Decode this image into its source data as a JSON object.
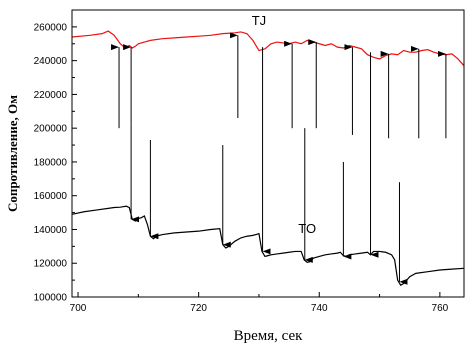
{
  "chart_data": {
    "type": "line",
    "xlabel": "Время, сек",
    "ylabel": "Сопротивление, Ом",
    "xlim": [
      699,
      764
    ],
    "ylim": [
      100000,
      270000
    ],
    "xticks": [
      700,
      720,
      740,
      760
    ],
    "yticks": [
      100000,
      120000,
      140000,
      160000,
      180000,
      200000,
      220000,
      240000,
      260000
    ],
    "grid": false,
    "series": [
      {
        "name": "TJ",
        "color": "#ee1111",
        "x": [
          699,
          702,
          704,
          705,
          706,
          707,
          707.5,
          708,
          708.5,
          709,
          709.5,
          710,
          711,
          712,
          714,
          716,
          718,
          720,
          722,
          724,
          726,
          727,
          728,
          729,
          730,
          731,
          732,
          733,
          734,
          735,
          736,
          737,
          738,
          739,
          740,
          741,
          742,
          743,
          744,
          745,
          746,
          747,
          748,
          749,
          750,
          751,
          752,
          753,
          754,
          755,
          756,
          757,
          758,
          759,
          760,
          761,
          762,
          763,
          764
        ],
        "y": [
          254000,
          255000,
          256000,
          257500,
          255000,
          250000,
          248500,
          248000,
          249000,
          247500,
          248500,
          250000,
          251000,
          252000,
          253000,
          253500,
          254000,
          254500,
          255000,
          256000,
          256500,
          257000,
          256000,
          252000,
          246000,
          247000,
          250000,
          251000,
          250500,
          250000,
          251000,
          250000,
          252000,
          251000,
          250000,
          249000,
          250000,
          248000,
          247500,
          249000,
          248000,
          247000,
          243500,
          242000,
          241000,
          243000,
          244000,
          243500,
          246000,
          245000,
          245000,
          246000,
          246500,
          245000,
          244000,
          243500,
          244000,
          241000,
          237000
        ]
      },
      {
        "name": "TO",
        "color": "#000000",
        "x": [
          699,
          701,
          703,
          705,
          706,
          707,
          707.5,
          708,
          708.5,
          709,
          709.5,
          710,
          710.5,
          711,
          711.5,
          712,
          712.5,
          713,
          714,
          716,
          718,
          720,
          722,
          723.5,
          724,
          724.5,
          725,
          726,
          727,
          728,
          729,
          729.5,
          730,
          730.5,
          731,
          731.5,
          732,
          733,
          734,
          735,
          736,
          737,
          737.5,
          738,
          738.5,
          739,
          740,
          741,
          742,
          743,
          743.5,
          744,
          744.5,
          745,
          746,
          747,
          748,
          748.5,
          749,
          750,
          751,
          752,
          752.5,
          753,
          753.5,
          754,
          755,
          756,
          758,
          760,
          762,
          764
        ],
        "y": [
          149000,
          150500,
          151500,
          152500,
          153000,
          153200,
          153500,
          153800,
          153000,
          146000,
          145000,
          146500,
          147000,
          148000,
          143000,
          136000,
          134500,
          136000,
          137000,
          138000,
          138500,
          139000,
          140000,
          140500,
          131000,
          129000,
          130000,
          133000,
          135000,
          136000,
          136500,
          137000,
          137500,
          127000,
          124000,
          124500,
          125000,
          125500,
          126000,
          126500,
          127000,
          127000,
          122000,
          120500,
          121000,
          123000,
          124000,
          125000,
          125500,
          126000,
          126500,
          124500,
          124000,
          125000,
          125500,
          126000,
          126500,
          125000,
          127000,
          127000,
          126500,
          125000,
          122000,
          110000,
          107000,
          108000,
          112000,
          114000,
          115000,
          116000,
          116500,
          117000
        ]
      }
    ],
    "arrows": [
      {
        "x": 706.8,
        "from": 200000,
        "to": 248000
      },
      {
        "x": 708.8,
        "from": 202000,
        "to": 248000
      },
      {
        "x": 726.5,
        "from": 206000,
        "to": 255000
      },
      {
        "x": 735.5,
        "from": 200000,
        "to": 250000
      },
      {
        "x": 739.5,
        "from": 200000,
        "to": 251000
      },
      {
        "x": 745.5,
        "from": 196000,
        "to": 248000
      },
      {
        "x": 751.5,
        "from": 194000,
        "to": 244000
      },
      {
        "x": 756.5,
        "from": 194000,
        "to": 247000
      },
      {
        "x": 761,
        "from": 194000,
        "to": 244000
      },
      {
        "x": 708.8,
        "from": 202000,
        "to": 146000
      },
      {
        "x": 712,
        "from": 193000,
        "to": 136000
      },
      {
        "x": 724,
        "from": 190000,
        "to": 131000
      },
      {
        "x": 730.6,
        "from": 248000,
        "to": 127000
      },
      {
        "x": 737.6,
        "from": 200000,
        "to": 122000
      },
      {
        "x": 744,
        "from": 180000,
        "to": 124000
      },
      {
        "x": 748.5,
        "from": 245000,
        "to": 125000
      },
      {
        "x": 753.3,
        "from": 168000,
        "to": 109000
      }
    ],
    "annotations": [
      {
        "text": "TJ",
        "x": 730,
        "y": 261000
      },
      {
        "text": "TO",
        "x": 738,
        "y": 138000
      }
    ]
  }
}
